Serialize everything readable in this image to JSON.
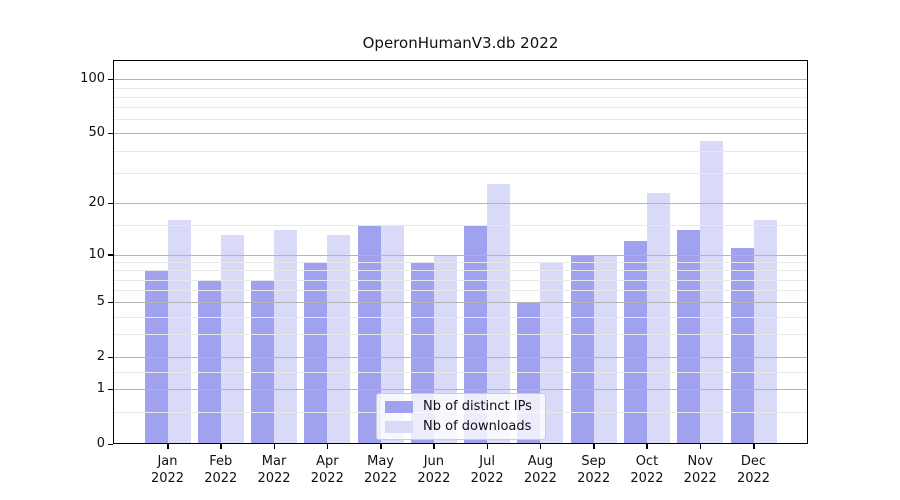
{
  "title": "OperonHumanV3.db 2022",
  "chart_data": {
    "type": "bar",
    "title": "OperonHumanV3.db 2022",
    "categories": [
      "Jan 2022",
      "Feb 2022",
      "Mar 2022",
      "Apr 2022",
      "May 2022",
      "Jun 2022",
      "Jul 2022",
      "Aug 2022",
      "Sep 2022",
      "Oct 2022",
      "Nov 2022",
      "Dec 2022"
    ],
    "series": [
      {
        "name": "Nb of distinct IPs",
        "color": "#a0a2f0",
        "values": [
          8,
          7,
          7,
          9,
          15,
          9,
          15,
          5,
          10,
          12,
          14,
          11
        ]
      },
      {
        "name": "Nb of downloads",
        "color": "#d8daf8",
        "values": [
          16,
          13,
          14,
          13,
          15,
          10,
          26,
          9,
          10,
          23,
          45,
          16
        ]
      }
    ],
    "yscale": "log1p",
    "ylim": [
      0,
      128
    ],
    "yticks": [
      0,
      1,
      2,
      5,
      10,
      20,
      50,
      100
    ],
    "minor_yticks": [
      0.5,
      1.5,
      3,
      4,
      6,
      7,
      8,
      9,
      15,
      30,
      40,
      60,
      70,
      80,
      90
    ],
    "xlabel": "",
    "ylabel": "",
    "grid": true,
    "grid_over_bars": true,
    "legend_position": "lower center"
  },
  "legend": {
    "items": [
      {
        "label": "Nb of distinct IPs",
        "color": "#a0a2f0"
      },
      {
        "label": "Nb of downloads",
        "color": "#d8daf8"
      }
    ]
  },
  "colors": {
    "series_ips": "#a0a2f0",
    "series_downloads": "#d8daf8",
    "major_grid": "#b5b5b5",
    "minor_grid": "#e9e9e9",
    "spine": "#000000",
    "background": "#ffffff"
  }
}
